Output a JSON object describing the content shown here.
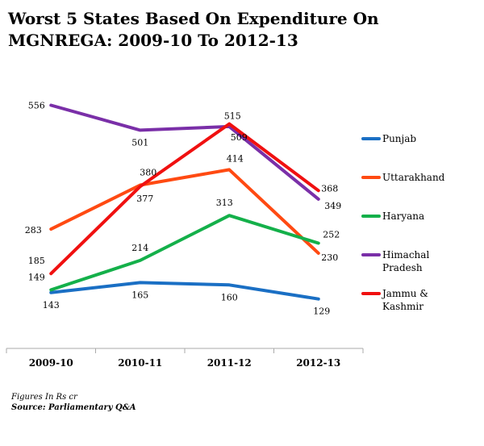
{
  "chart_data": {
    "type": "line",
    "title": "Worst 5 States Based On Expenditure On MGNREGA: 2009-10 To 2012-13",
    "categories": [
      "2009-10",
      "2010-11",
      "2011-12",
      "2012-13"
    ],
    "ylim": [
      100,
      580
    ],
    "grid": false,
    "legend_position": "right",
    "series": [
      {
        "name": "Punjab",
        "color": "#1a6fc4",
        "values": [
          143,
          165,
          160,
          129
        ]
      },
      {
        "name": "Uttarakhand",
        "color": "#ff4a12",
        "values": [
          283,
          380,
          414,
          230
        ]
      },
      {
        "name": "Haryana",
        "color": "#14b04a",
        "values": [
          149,
          214,
          313,
          252
        ]
      },
      {
        "name": "Himachal Pradesh",
        "color": "#7a2fa8",
        "values": [
          556,
          501,
          509,
          349
        ]
      },
      {
        "name": "Jammu & Kashmir",
        "color": "#f01010",
        "values": [
          185,
          377,
          515,
          368
        ]
      }
    ]
  },
  "footer": {
    "note": "Figures In Rs cr",
    "source": "Source: Parliamentary Q&A"
  }
}
